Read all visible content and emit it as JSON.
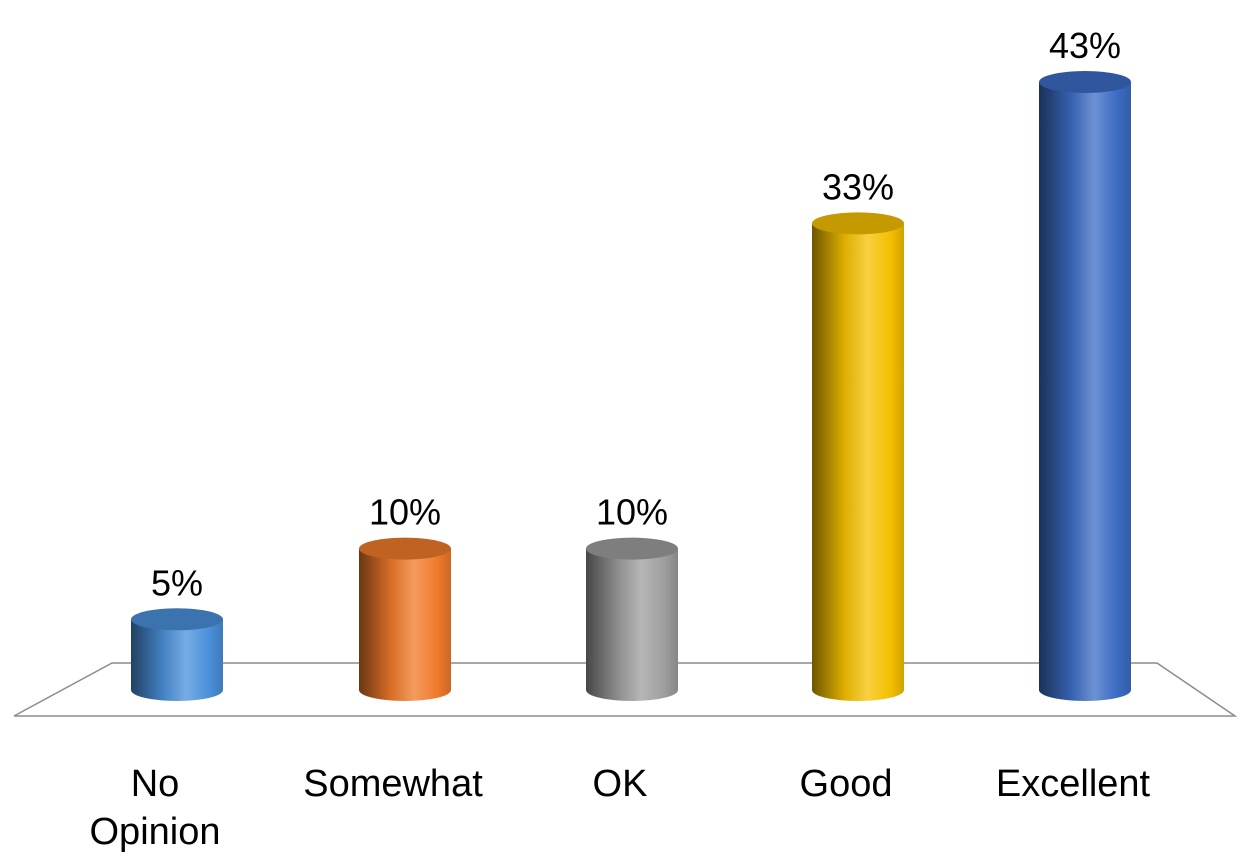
{
  "chart_data": {
    "type": "bar",
    "categories": [
      [
        "No",
        "Opinion"
      ],
      [
        "Somewhat"
      ],
      [
        "OK"
      ],
      [
        "Good"
      ],
      [
        "Excellent"
      ]
    ],
    "values": [
      5,
      10,
      10,
      33,
      43
    ],
    "data_labels": [
      "5%",
      "10%",
      "10%",
      "33%",
      "43%"
    ],
    "colors": [
      "#4A90D9",
      "#F07A2A",
      "#9E9E9E",
      "#F5C000",
      "#3C6CC4"
    ],
    "ylim": [
      0,
      43
    ],
    "grid": false,
    "legend": "none",
    "style": "3d-cylinder"
  }
}
